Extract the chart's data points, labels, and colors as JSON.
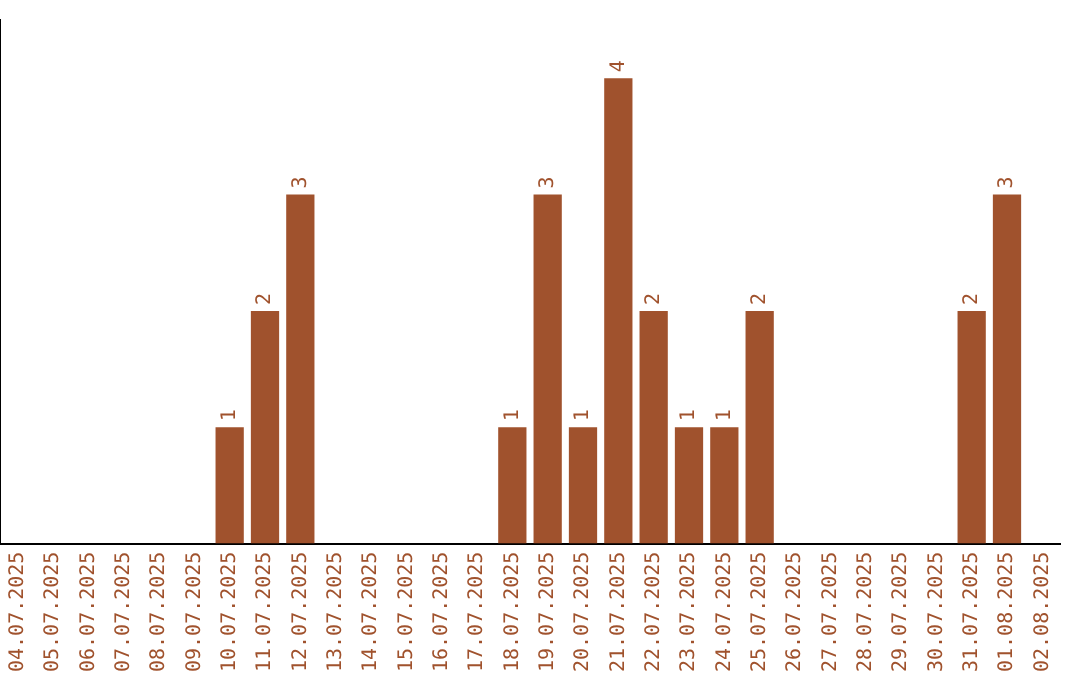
{
  "chart_data": {
    "type": "bar",
    "categories": [
      "04.07.2025",
      "05.07.2025",
      "06.07.2025",
      "07.07.2025",
      "08.07.2025",
      "09.07.2025",
      "10.07.2025",
      "11.07.2025",
      "12.07.2025",
      "13.07.2025",
      "14.07.2025",
      "15.07.2025",
      "16.07.2025",
      "17.07.2025",
      "18.07.2025",
      "19.07.2025",
      "20.07.2025",
      "21.07.2025",
      "22.07.2025",
      "23.07.2025",
      "24.07.2025",
      "25.07.2025",
      "26.07.2025",
      "27.07.2025",
      "28.07.2025",
      "29.07.2025",
      "30.07.2025",
      "31.07.2025",
      "01.08.2025",
      "02.08.2025"
    ],
    "values": [
      null,
      null,
      null,
      null,
      null,
      null,
      1,
      2,
      3,
      null,
      null,
      null,
      null,
      null,
      1,
      3,
      1,
      4,
      2,
      1,
      1,
      2,
      null,
      null,
      null,
      null,
      null,
      2,
      3,
      null
    ],
    "color": "#a0522d",
    "data_labels": true,
    "grid": false,
    "legend": false
  }
}
